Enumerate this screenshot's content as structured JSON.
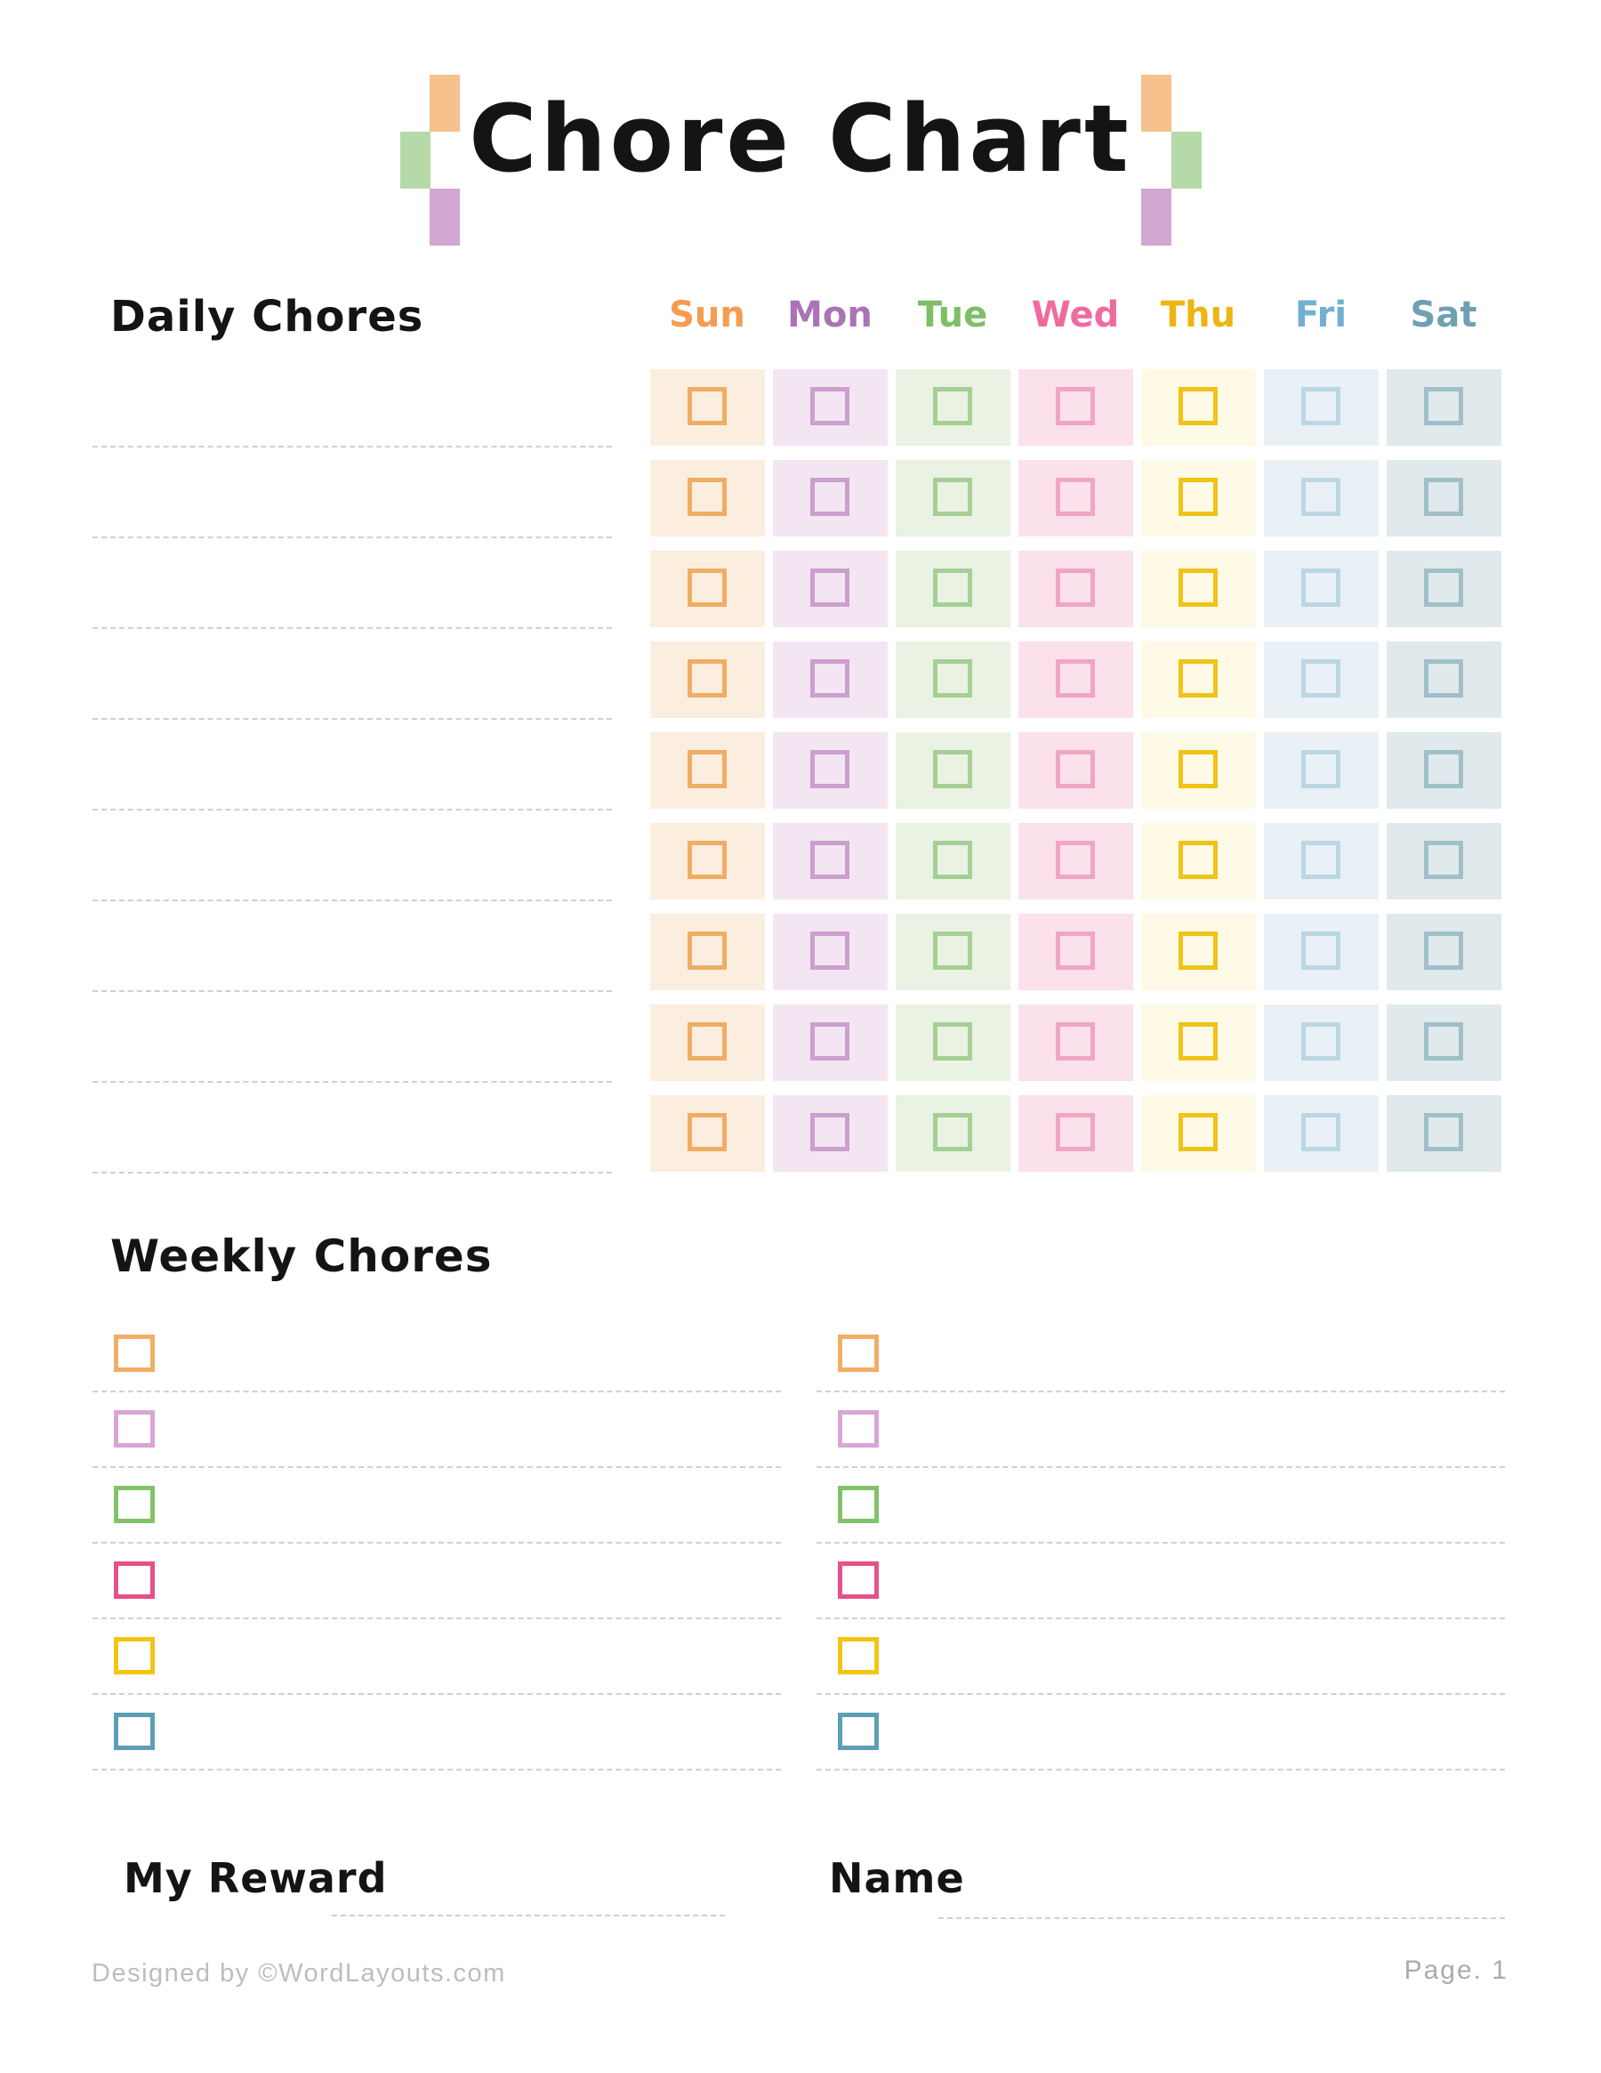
{
  "title": "Chore Chart",
  "decoration_colors": {
    "orange": "#f6c18c",
    "green": "#b6d9a8",
    "purple": "#d2a7d1"
  },
  "daily": {
    "heading": "Daily Chores",
    "line_count": 9
  },
  "grid": {
    "rows": 9,
    "columns": 7
  },
  "days": [
    {
      "label": "Sun",
      "text_color": "#f59c4e",
      "cell_bg": "#fceedf",
      "box_border": "#f0ad64"
    },
    {
      "label": "Mon",
      "text_color": "#a973b5",
      "cell_bg": "#f3e6f2",
      "box_border": "#cb9fce"
    },
    {
      "label": "Tue",
      "text_color": "#7ebe66",
      "cell_bg": "#eaf2e3",
      "box_border": "#a5cf95"
    },
    {
      "label": "Wed",
      "text_color": "#ef6b9f",
      "cell_bg": "#fbe1eb",
      "box_border": "#f0a5c3"
    },
    {
      "label": "Thu",
      "text_color": "#eeb512",
      "cell_bg": "#fefae6",
      "box_border": "#efc318"
    },
    {
      "label": "Fri",
      "text_color": "#72b0d1",
      "cell_bg": "#e9f1f6",
      "box_border": "#bbd7e3"
    },
    {
      "label": "Sat",
      "text_color": "#6fa0b2",
      "cell_bg": "#e0e9eb",
      "box_border": "#a0bfc9"
    }
  ],
  "weekly": {
    "heading": "Weekly Chores",
    "columns": 2,
    "rows_per_column": 6,
    "checkbox_colors": [
      "#f2ae66",
      "#d8a6d4",
      "#82c26b",
      "#e75189",
      "#f3c513",
      "#5c9fb5"
    ]
  },
  "fields": {
    "my_reward_label": "My Reward",
    "name_label": "Name"
  },
  "footer": {
    "credit": "Designed by ©WordLayouts.com",
    "page": "Page. 1"
  }
}
